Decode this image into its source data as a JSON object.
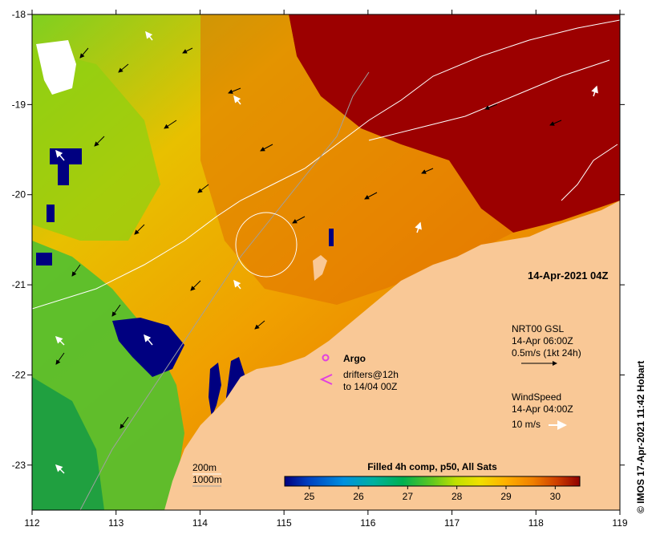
{
  "map": {
    "date_label": "14-Apr-2021 04Z",
    "credit": "© IMOS 17-Apr-2021 11:42 Hobart",
    "lon_ticks": [
      "112",
      "113",
      "114",
      "115",
      "116",
      "117",
      "118",
      "119"
    ],
    "lat_ticks": [
      "-18",
      "-19",
      "-20",
      "-21",
      "-22",
      "-23"
    ],
    "lon_range": [
      112,
      119
    ],
    "lat_range": [
      -23.5,
      -18
    ],
    "land_color": "#f9c896",
    "legend": {
      "argo_label": "Argo",
      "drifters_line1": "drifters@12h",
      "drifters_line2": "to 14/04 00Z",
      "argo_color": "#e040e0",
      "drifter_color": "#e040e0"
    },
    "current": {
      "line1": "NRT00 GSL",
      "line2": "14-Apr 06:00Z",
      "line3": "0.5m/s (1kt 24h)"
    },
    "wind": {
      "line1": "WindSpeed",
      "line2": "14-Apr 04:00Z",
      "line3": "10 m/s"
    },
    "isobaths": {
      "label_200": "200m",
      "label_1000": "1000m"
    },
    "colorbar": {
      "title": "Filled 4h comp, p50, All Sats",
      "min": 24.5,
      "max": 30.5,
      "ticks": [
        "25",
        "26",
        "27",
        "28",
        "29",
        "30"
      ],
      "colors": [
        "#000080",
        "#0040c0",
        "#0090e0",
        "#00b0a0",
        "#00b050",
        "#40c020",
        "#a0e000",
        "#e0e000",
        "#ffc000",
        "#ff9000",
        "#e06000",
        "#c03000",
        "#900000"
      ]
    }
  }
}
